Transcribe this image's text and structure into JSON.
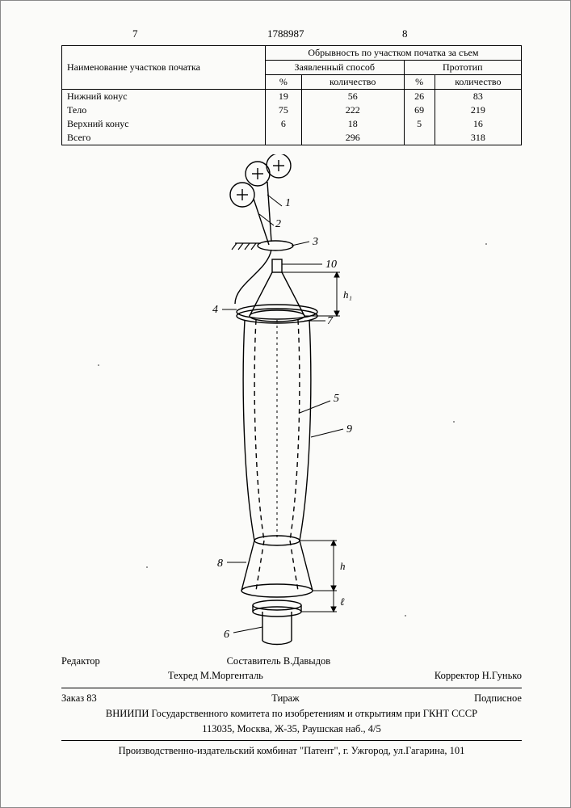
{
  "docNumber": "1788987",
  "pageLeft": "7",
  "pageRight": "8",
  "table": {
    "rowHeader": "Наименование участков початка",
    "spanHeader": "Обрывность по участком початка за съем",
    "sub1": "Заявленный способ",
    "sub2": "Прототип",
    "pct": "%",
    "qty": "количество",
    "rows": [
      {
        "name": "Нижний конус",
        "p1": "19",
        "q1": "56",
        "p2": "26",
        "q2": "83"
      },
      {
        "name": "Тело",
        "p1": "75",
        "q1": "222",
        "p2": "69",
        "q2": "219"
      },
      {
        "name": "Верхний конус",
        "p1": "6",
        "q1": "18",
        "p2": "5",
        "q2": "16"
      },
      {
        "name": "Всего",
        "p1": "",
        "q1": "296",
        "p2": "",
        "q2": "318"
      }
    ]
  },
  "diagram": {
    "labels": [
      "1",
      "2",
      "3",
      "4",
      "5",
      "6",
      "7",
      "8",
      "9",
      "10"
    ],
    "dims": [
      "h",
      "h₁",
      "ℓ"
    ]
  },
  "footer": {
    "editor_label": "Редактор",
    "compiler": "Составитель  В.Давыдов",
    "tech": "Техред М.Моргенталь",
    "corrector": "Корректор  Н.Гунько",
    "order": "Заказ 83",
    "tirazh": "Тираж",
    "signed": "Подписное",
    "org": "ВНИИПИ Государственного комитета по изобретениям и открытиям при ГКНТ СССР",
    "addr": "113035, Москва, Ж-35, Раушская наб., 4/5",
    "printer": "Производственно-издательский комбинат \"Патент\", г. Ужгород, ул.Гагарина, 101"
  }
}
